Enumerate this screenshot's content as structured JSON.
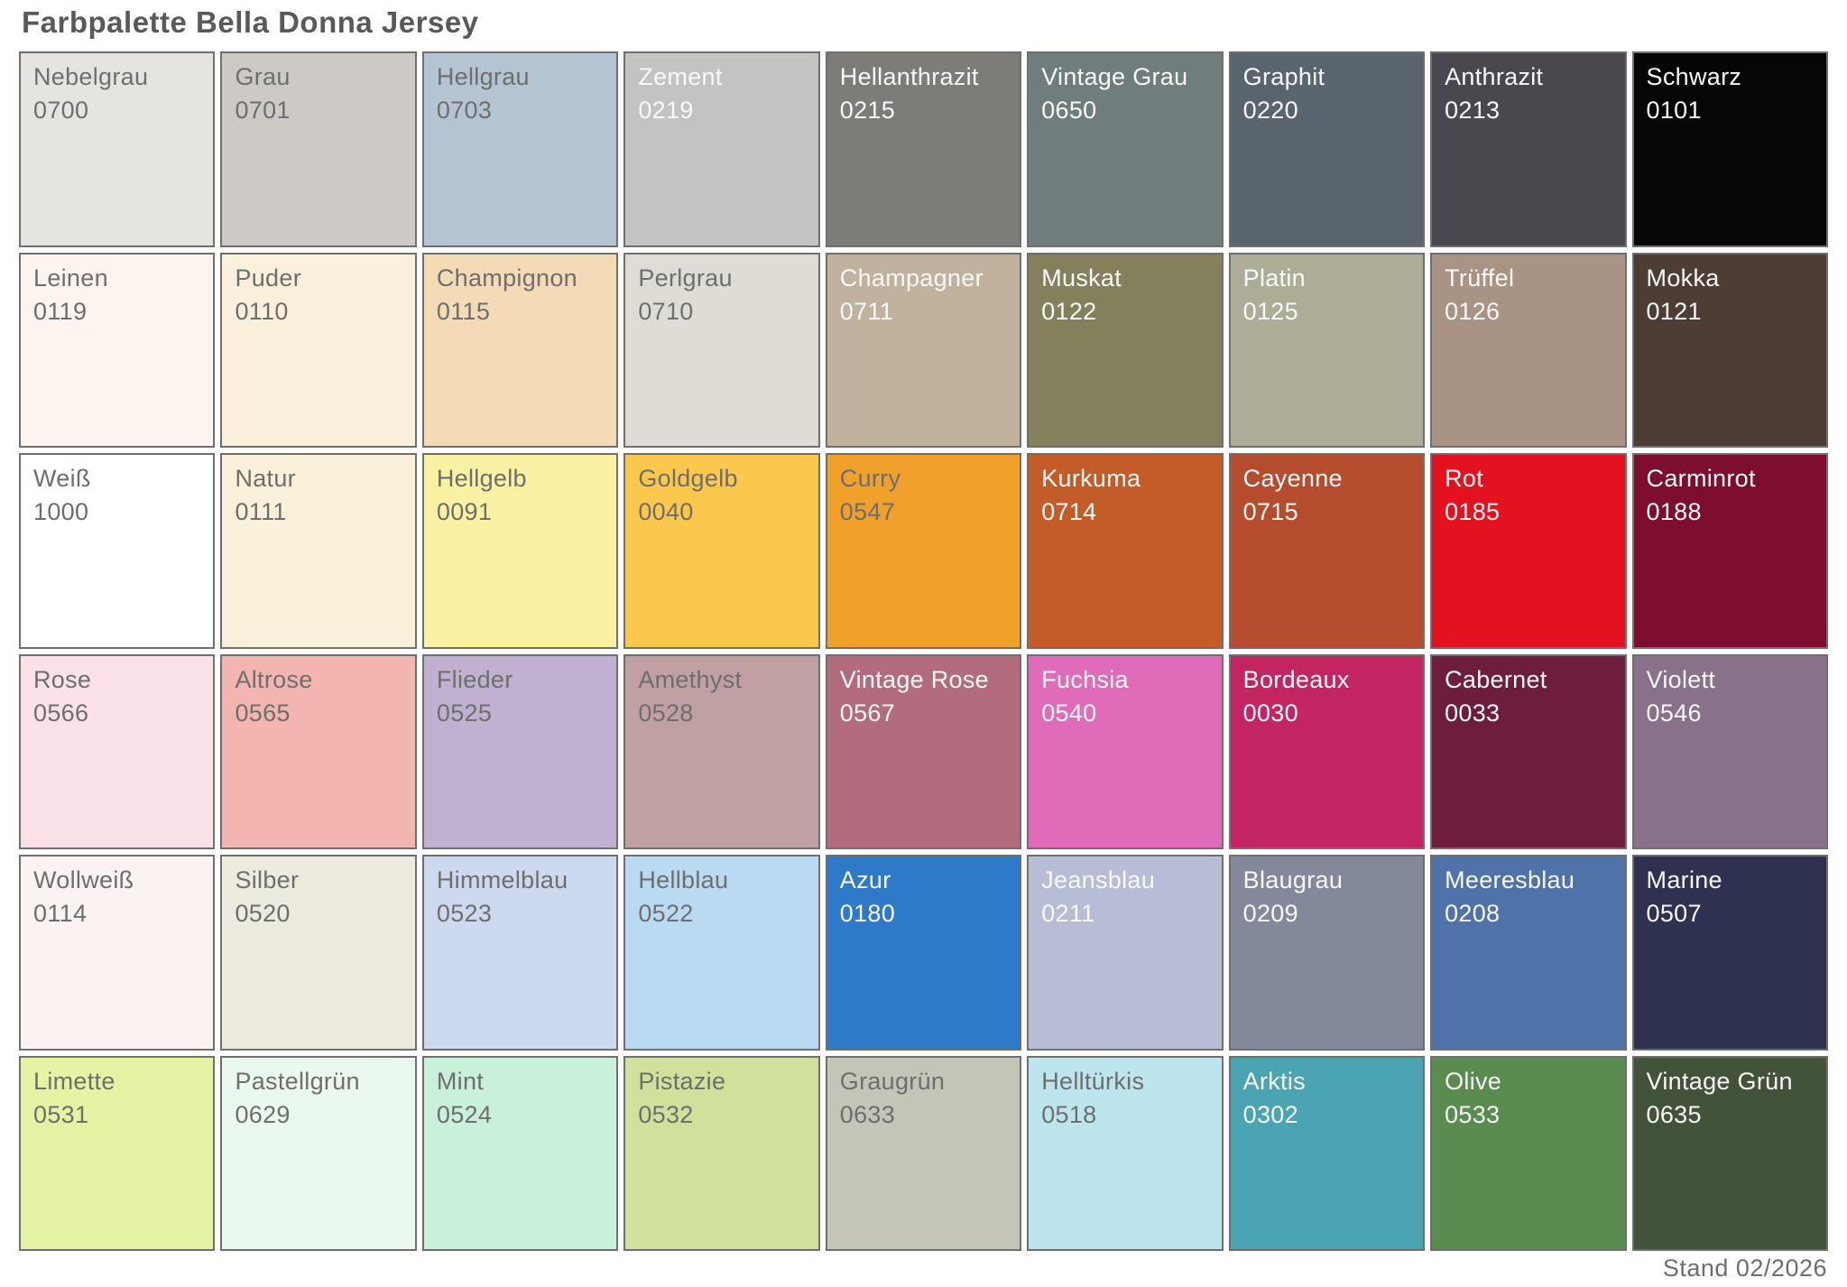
{
  "title": "Farbpalette Bella Donna Jersey",
  "footer": "Stand 02/2026",
  "palette": {
    "rows": 6,
    "cols": 9,
    "border_color": "#6f6f6f",
    "dark_text_color": "#6e6e6e",
    "light_text_color": "#f9f9f9",
    "swatches": [
      {
        "name": "Nebelgrau",
        "code": "0700",
        "color": "#e5e4e1",
        "text": "dark"
      },
      {
        "name": "Grau",
        "code": "0701",
        "color": "#cdc9c5",
        "text": "dark"
      },
      {
        "name": "Hellgrau",
        "code": "0703",
        "color": "#b4c4d2",
        "text": "dark"
      },
      {
        "name": "Zement",
        "code": "0219",
        "color": "#c3c3c1",
        "text": "light"
      },
      {
        "name": "Hellanthrazit",
        "code": "0215",
        "color": "#7e7c79",
        "text": "light"
      },
      {
        "name": "Vintage Grau",
        "code": "0650",
        "color": "#6f7e7c",
        "text": "light"
      },
      {
        "name": "Graphit",
        "code": "0220",
        "color": "#5a646e",
        "text": "light"
      },
      {
        "name": "Anthrazit",
        "code": "0213",
        "color": "#4b474e",
        "text": "light"
      },
      {
        "name": "Schwarz",
        "code": "0101",
        "color": "#060606",
        "text": "light"
      },
      {
        "name": "Leinen",
        "code": "0119",
        "color": "#fdf3ef",
        "text": "dark"
      },
      {
        "name": "Puder",
        "code": "0110",
        "color": "#fbf0dc",
        "text": "dark"
      },
      {
        "name": "Champignon",
        "code": "0115",
        "color": "#f4dab5",
        "text": "dark"
      },
      {
        "name": "Perlgrau",
        "code": "0710",
        "color": "#dedcd5",
        "text": "dark"
      },
      {
        "name": "Champagner",
        "code": "0711",
        "color": "#c0b29c",
        "text": "light"
      },
      {
        "name": "Muskat",
        "code": "0122",
        "color": "#85805c",
        "text": "light"
      },
      {
        "name": "Platin",
        "code": "0125",
        "color": "#acac97",
        "text": "light"
      },
      {
        "name": "Trüffel",
        "code": "0126",
        "color": "#a99384",
        "text": "light"
      },
      {
        "name": "Mokka",
        "code": "0121",
        "color": "#4e3d34",
        "text": "light"
      },
      {
        "name": "Weiß",
        "code": "1000",
        "color": "#ffffff",
        "text": "dark"
      },
      {
        "name": "Natur",
        "code": "0111",
        "color": "#f9f1d9",
        "text": "dark"
      },
      {
        "name": "Hellgelb",
        "code": "0091",
        "color": "#faf1a3",
        "text": "dark"
      },
      {
        "name": "Goldgelb",
        "code": "0040",
        "color": "#fbc84d",
        "text": "dark"
      },
      {
        "name": "Curry",
        "code": "0547",
        "color": "#f0a12b",
        "text": "dark"
      },
      {
        "name": "Kurkuma",
        "code": "0714",
        "color": "#c45c2a",
        "text": "light"
      },
      {
        "name": "Cayenne",
        "code": "0715",
        "color": "#b54c2e",
        "text": "light"
      },
      {
        "name": "Rot",
        "code": "0185",
        "color": "#e41220",
        "text": "light"
      },
      {
        "name": "Carminrot",
        "code": "0188",
        "color": "#7d0e2f",
        "text": "light"
      },
      {
        "name": "Rose",
        "code": "0566",
        "color": "#fbe2e9",
        "text": "dark"
      },
      {
        "name": "Altrose",
        "code": "0565",
        "color": "#f3b5af",
        "text": "dark"
      },
      {
        "name": "Flieder",
        "code": "0525",
        "color": "#c0b1d1",
        "text": "dark"
      },
      {
        "name": "Amethyst",
        "code": "0528",
        "color": "#c0a0a3",
        "text": "dark"
      },
      {
        "name": "Vintage Rose",
        "code": "0567",
        "color": "#b26c7d",
        "text": "light"
      },
      {
        "name": "Fuchsia",
        "code": "0540",
        "color": "#e06cb9",
        "text": "light"
      },
      {
        "name": "Bordeaux",
        "code": "0030",
        "color": "#c22562",
        "text": "light"
      },
      {
        "name": "Cabernet",
        "code": "0033",
        "color": "#6f1d3d",
        "text": "light"
      },
      {
        "name": "Violett",
        "code": "0546",
        "color": "#897189",
        "text": "light"
      },
      {
        "name": "Wollweiß",
        "code": "0114",
        "color": "#faf3f1",
        "text": "dark"
      },
      {
        "name": "Silber",
        "code": "0520",
        "color": "#ecebdd",
        "text": "dark"
      },
      {
        "name": "Himmelblau",
        "code": "0523",
        "color": "#cdd9ef",
        "text": "dark"
      },
      {
        "name": "Hellblau",
        "code": "0522",
        "color": "#badaf2",
        "text": "dark"
      },
      {
        "name": "Azur",
        "code": "0180",
        "color": "#2f7ac8",
        "text": "light"
      },
      {
        "name": "Jeansblau",
        "code": "0211",
        "color": "#b7bdd5",
        "text": "light"
      },
      {
        "name": "Blaugrau",
        "code": "0209",
        "color": "#83889b",
        "text": "light"
      },
      {
        "name": "Meeresblau",
        "code": "0208",
        "color": "#4f73a9",
        "text": "light"
      },
      {
        "name": "Marine",
        "code": "0507",
        "color": "#2f3151",
        "text": "light"
      },
      {
        "name": "Limette",
        "code": "0531",
        "color": "#e5f3a4",
        "text": "dark"
      },
      {
        "name": "Pastellgrün",
        "code": "0629",
        "color": "#eaf8ed",
        "text": "dark"
      },
      {
        "name": "Mint",
        "code": "0524",
        "color": "#c9f1d9",
        "text": "dark"
      },
      {
        "name": "Pistazie",
        "code": "0532",
        "color": "#d0e19c",
        "text": "dark"
      },
      {
        "name": "Graugrün",
        "code": "0633",
        "color": "#c4c5b6",
        "text": "dark"
      },
      {
        "name": "Helltürkis",
        "code": "0518",
        "color": "#bde5ed",
        "text": "dark"
      },
      {
        "name": "Arktis",
        "code": "0302",
        "color": "#4ba4b1",
        "text": "light"
      },
      {
        "name": "Olive",
        "code": "0533",
        "color": "#5a8b4f",
        "text": "light"
      },
      {
        "name": "Vintage Grün",
        "code": "0635",
        "color": "#435339",
        "text": "light"
      }
    ]
  }
}
